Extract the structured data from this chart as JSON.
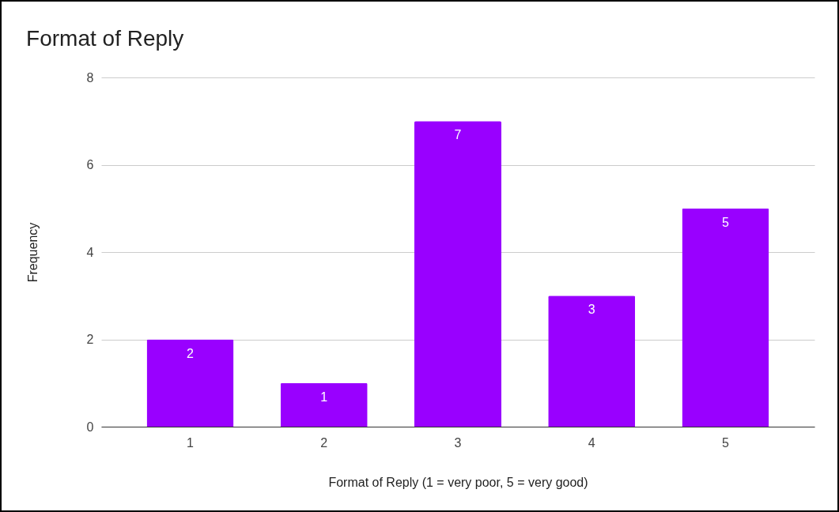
{
  "chart_data": {
    "type": "bar",
    "title": "Format of Reply",
    "xlabel": "Format of Reply (1 = very poor, 5 = very good)",
    "ylabel": "Frequency",
    "categories": [
      "1",
      "2",
      "3",
      "4",
      "5"
    ],
    "values": [
      2,
      1,
      7,
      3,
      5
    ],
    "color": "#9900ff",
    "ylim": [
      0,
      8
    ],
    "yticks": [
      0,
      2,
      4,
      6,
      8
    ],
    "grid": "y",
    "data_labels": true
  }
}
